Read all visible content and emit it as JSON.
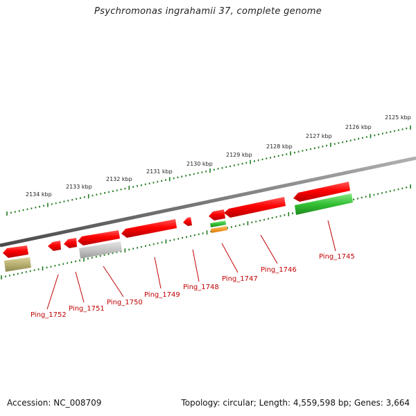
{
  "title": "Psychromonas ingrahamii 37, complete genome",
  "footer": {
    "accession": "Accession: NC_008709",
    "summary": "Topology: circular; Length: 4,559,598 bp; Genes: 3,664"
  },
  "colors": {
    "backbone": "#7a7a7a",
    "tick": "#1f7a1f",
    "cds_forward": "#e00000",
    "cds_other": "#c0c0c0",
    "rna_green": "#3fbf3f",
    "feature_orange": "#f08c00",
    "feature_olive": "#b8b070",
    "label": "#c00000"
  },
  "scale_labels": [
    "2125 kbp",
    "2126 kbp",
    "2127 kbp",
    "2128 kbp",
    "2129 kbp",
    "2130 kbp",
    "2131 kbp",
    "2132 kbp",
    "2133 kbp",
    "2134 kbp"
  ],
  "genes": [
    "Ping_1745",
    "Ping_1746",
    "Ping_1747",
    "Ping_1748",
    "Ping_1749",
    "Ping_1750",
    "Ping_1751",
    "Ping_1752"
  ]
}
